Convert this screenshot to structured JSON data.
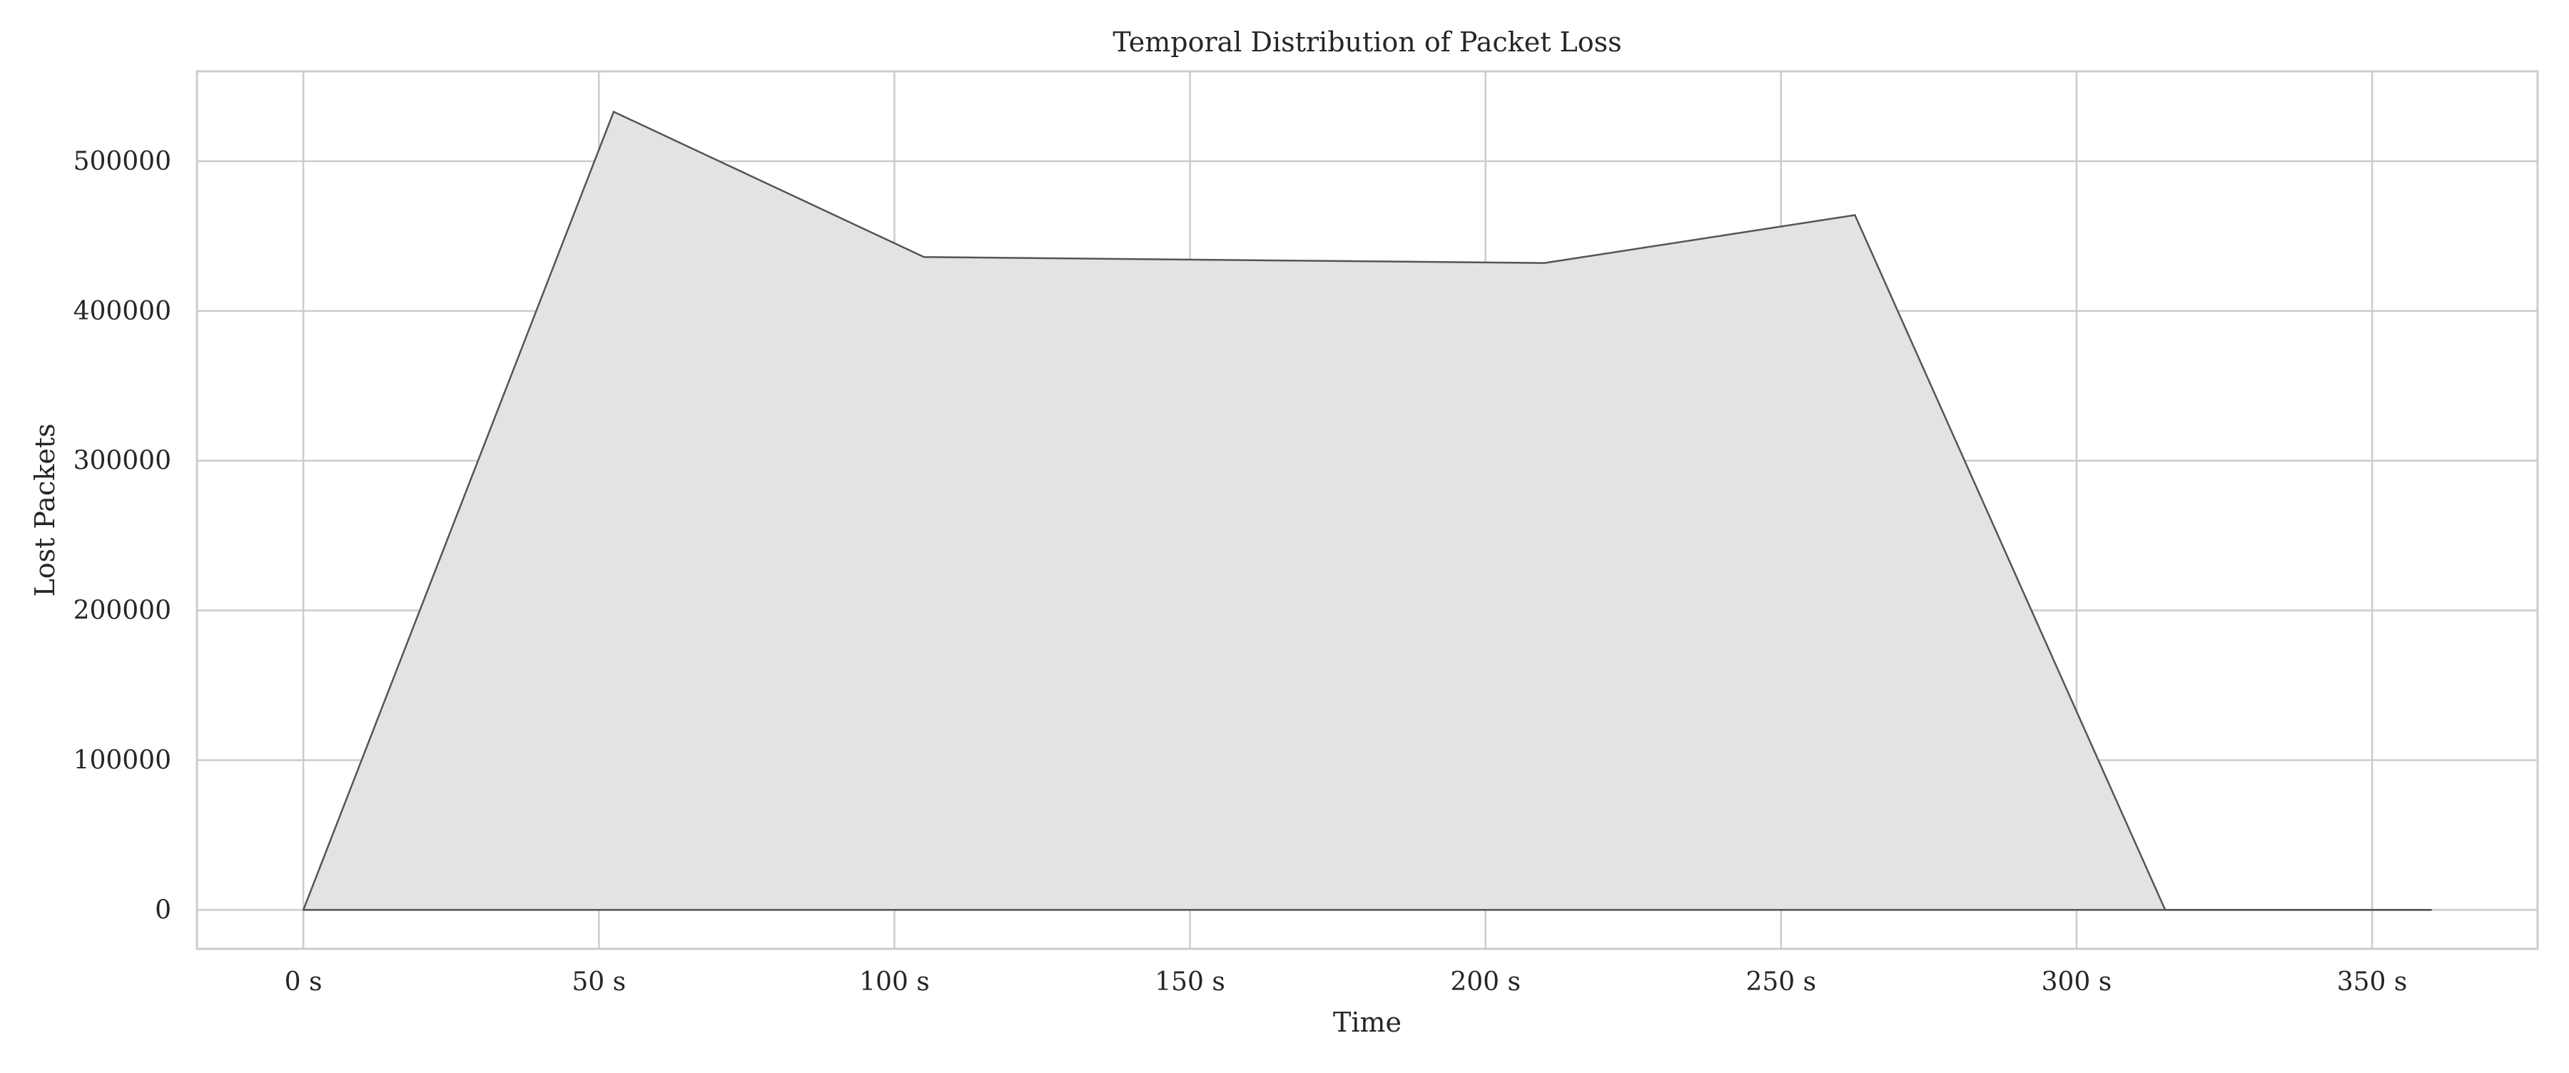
{
  "chart_data": {
    "type": "area",
    "title": "Temporal Distribution of Packet Loss",
    "xlabel": "Time",
    "ylabel": "Lost Packets",
    "xlim": [
      -18,
      378
    ],
    "ylim": [
      -26000,
      560000
    ],
    "x_ticks": [
      {
        "value": 0,
        "label": "0 s"
      },
      {
        "value": 50,
        "label": "50 s"
      },
      {
        "value": 100,
        "label": "100 s"
      },
      {
        "value": 150,
        "label": "150 s"
      },
      {
        "value": 200,
        "label": "200 s"
      },
      {
        "value": 250,
        "label": "250 s"
      },
      {
        "value": 300,
        "label": "300 s"
      },
      {
        "value": 350,
        "label": "350 s"
      }
    ],
    "y_ticks": [
      {
        "value": 0,
        "label": "0"
      },
      {
        "value": 100000,
        "label": "100000"
      },
      {
        "value": 200000,
        "label": "200000"
      },
      {
        "value": 300000,
        "label": "300000"
      },
      {
        "value": 400000,
        "label": "400000"
      },
      {
        "value": 500000,
        "label": "500000"
      }
    ],
    "grid": true,
    "series": [
      {
        "x": [
          0,
          52.5,
          105,
          157.5,
          210,
          262.5,
          315,
          360
        ],
        "y": [
          0,
          533000,
          436000,
          434000,
          432000,
          464000,
          0,
          0
        ],
        "fill_color": "#e3e3e3",
        "line_color": "#555555"
      }
    ]
  },
  "colors": {
    "grid": "#cccccc",
    "axes_frame": "#cccccc",
    "text": "#262626"
  }
}
